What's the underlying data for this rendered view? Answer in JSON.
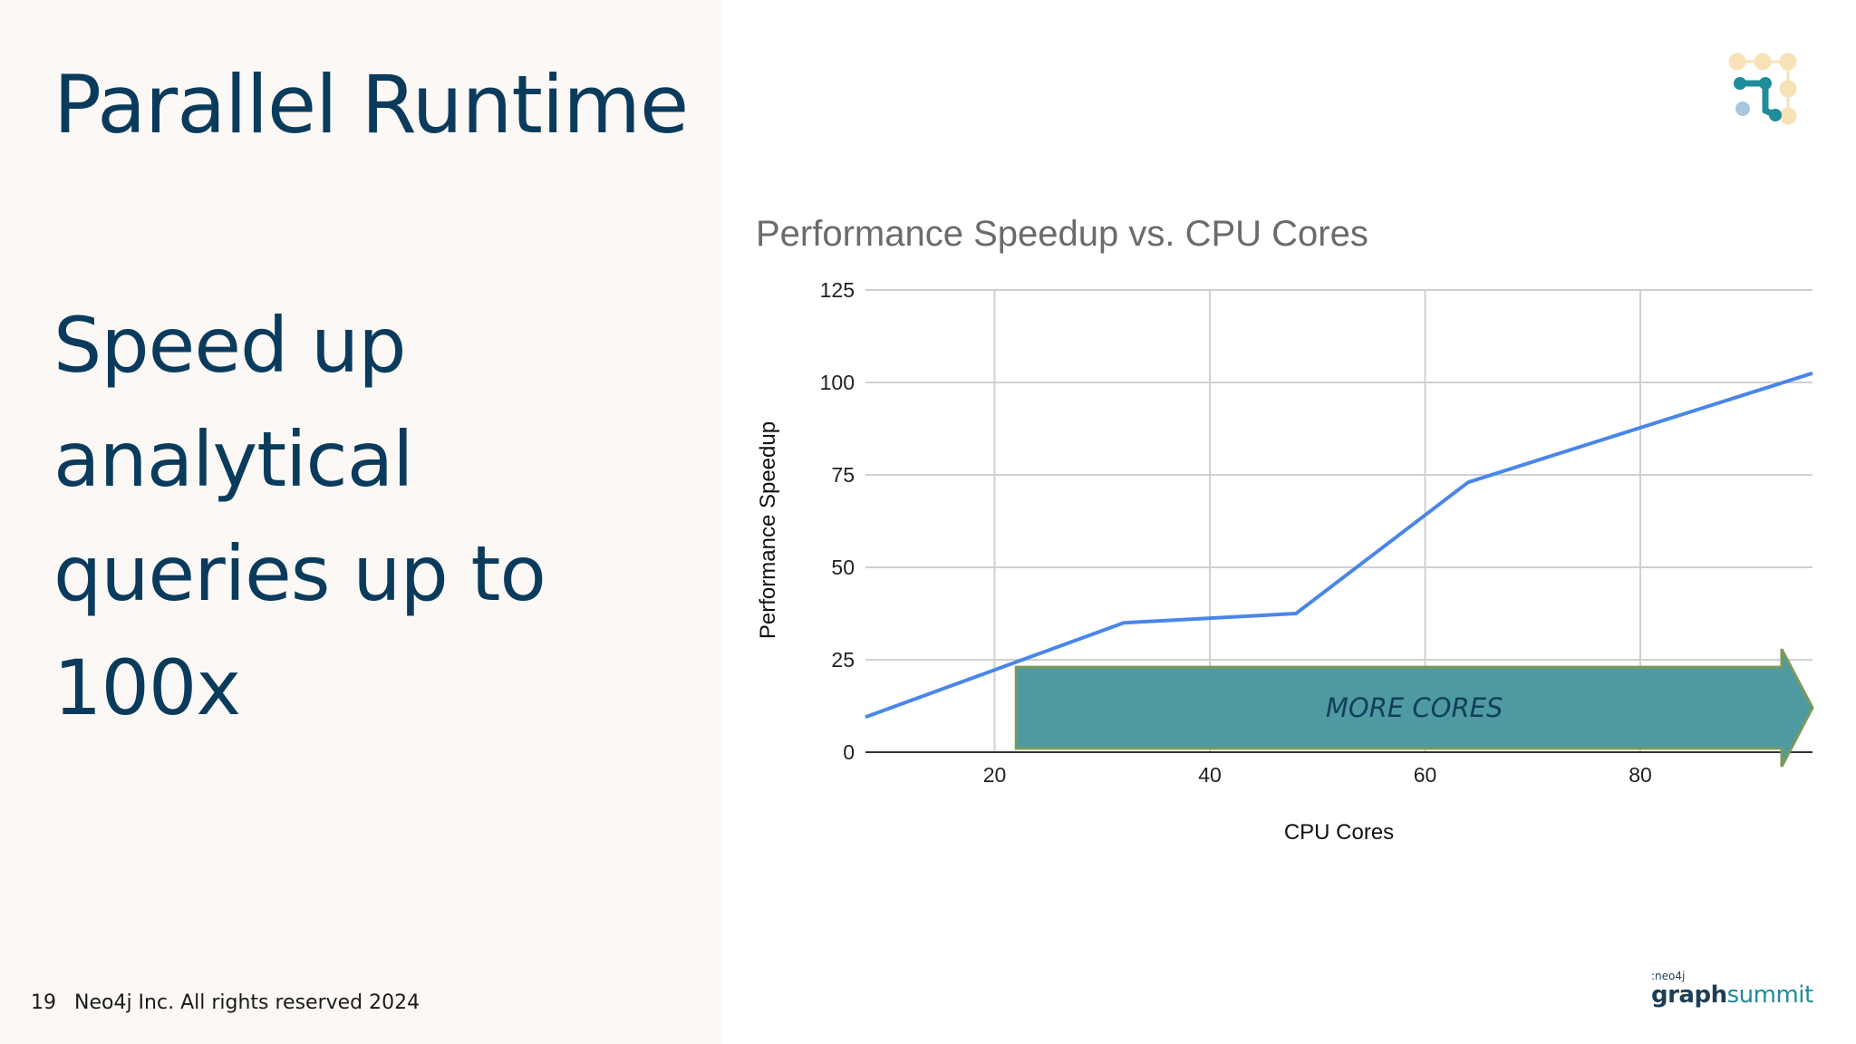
{
  "slide": {
    "title": "Parallel Runtime",
    "subtitle": "Speed up analytical queries up to 100x",
    "page_number": "19",
    "copyright": "Neo4j Inc. All rights reserved 2024",
    "brand_small": ":neo4j",
    "brand_graph": "graph",
    "brand_summit": "summit"
  },
  "colors": {
    "title": "#0b3b5c",
    "line": "#4a86e8",
    "arrow_fill": "#4e9aa0",
    "arrow_border": "#7a9a5a",
    "grid": "#d0d0d0"
  },
  "icons": {
    "logo": "graph-nodes-logo-icon"
  },
  "chart_data": {
    "type": "line",
    "title": "Performance Speedup vs. CPU Cores",
    "xlabel": "CPU Cores",
    "ylabel": "Performance Speedup",
    "xlim": [
      8,
      96
    ],
    "ylim": [
      0,
      125
    ],
    "x_ticks": [
      20,
      40,
      60,
      80
    ],
    "y_ticks": [
      0,
      25,
      50,
      75,
      100,
      125
    ],
    "grid": true,
    "series": [
      {
        "x": [
          8,
          32,
          48,
          64,
          96
        ],
        "y": [
          9.5,
          35,
          37.5,
          73,
          102.5
        ]
      }
    ],
    "annotations": [
      {
        "type": "arrow",
        "text": "MORE CORES",
        "x_start": 22,
        "x_end": 96,
        "y_bottom": 1,
        "y_top": 23
      }
    ]
  }
}
